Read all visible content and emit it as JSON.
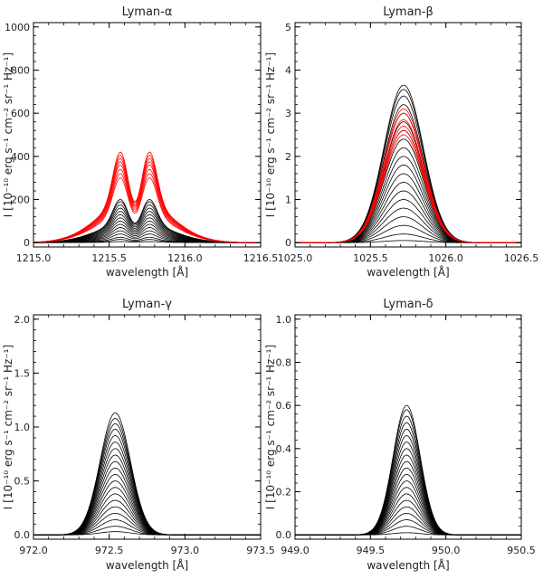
{
  "chart_data": [
    {
      "type": "line",
      "title": "Lyman-α",
      "xlabel": "wavelength [Å]",
      "ylabel": "I [10⁻¹⁰ erg s⁻¹ cm⁻² sr⁻¹ Hz⁻¹]",
      "xlim": [
        1215.0,
        1216.5
      ],
      "ylim": [
        -20,
        1020
      ],
      "xticks": [
        1215.0,
        1215.5,
        1216.0,
        1216.5
      ],
      "xtick_labels": [
        "1215.0",
        "1215.5",
        "1216.0",
        "1216.5"
      ],
      "yticks": [
        0,
        200,
        400,
        600,
        800,
        1000
      ],
      "ytick_labels": [
        "0",
        "200",
        "400",
        "600",
        "800",
        "1000"
      ],
      "profile": {
        "shape": "double",
        "center": 1215.67,
        "sigma": 0.22,
        "sep": 0.1,
        "peak_sigma": 0.05,
        "core_depth": 0.2
      },
      "series": [
        {
          "name": "black profiles",
          "color": "#000000",
          "peaks": [
            5,
            15,
            25,
            40,
            55,
            70,
            85,
            100,
            115,
            130,
            145,
            160,
            175,
            190,
            200
          ]
        },
        {
          "name": "red profiles",
          "color": "#ff0000",
          "peaks": [
            300,
            320,
            340,
            360,
            375,
            390,
            405,
            420
          ]
        }
      ]
    },
    {
      "type": "line",
      "title": "Lyman-β",
      "xlabel": "wavelength [Å]",
      "ylabel": "I [10⁻¹⁰ erg s⁻¹ cm⁻² sr⁻¹ Hz⁻¹]",
      "xlim": [
        1025.0,
        1026.5
      ],
      "ylim": [
        -0.1,
        5.1
      ],
      "xticks": [
        1025.0,
        1025.5,
        1026.0,
        1026.5
      ],
      "xtick_labels": [
        "1025.0",
        "1025.5",
        "1026.0",
        "1026.5"
      ],
      "yticks": [
        0,
        1,
        2,
        3,
        4,
        5
      ],
      "ytick_labels": [
        "0",
        "1",
        "2",
        "3",
        "4",
        "5"
      ],
      "profile": {
        "shape": "single",
        "center": 1025.72,
        "sigma": 0.13
      },
      "series": [
        {
          "name": "black profiles",
          "color": "#000000",
          "peaks": [
            0.05,
            0.2,
            0.4,
            0.6,
            0.8,
            1.0,
            1.2,
            1.4,
            1.6,
            1.8,
            2.0,
            2.2,
            2.4,
            2.6,
            2.8,
            3.0,
            3.2,
            3.4,
            3.55,
            3.65
          ]
        },
        {
          "name": "red profiles",
          "color": "#ff0000",
          "peaks": [
            2.5,
            2.6,
            2.7,
            2.85,
            3.0,
            3.1
          ]
        }
      ]
    },
    {
      "type": "line",
      "title": "Lyman-γ",
      "xlabel": "wavelength [Å]",
      "ylabel": "I [10⁻¹⁰ erg s⁻¹ cm⁻² sr⁻¹ Hz⁻¹]",
      "xlim": [
        972.0,
        973.5
      ],
      "ylim": [
        -0.04,
        2.04
      ],
      "xticks": [
        972.0,
        972.5,
        973.0,
        973.5
      ],
      "xtick_labels": [
        "972.0",
        "972.5",
        "973.0",
        "973.5"
      ],
      "yticks": [
        0,
        0.5,
        1.0,
        1.5,
        2.0
      ],
      "ytick_labels": [
        "0.0",
        "0.5",
        "1.0",
        "1.5",
        "2.0"
      ],
      "profile": {
        "shape": "single",
        "center": 972.54,
        "sigma": 0.1
      },
      "series": [
        {
          "name": "black profiles",
          "color": "#000000",
          "peaks": [
            0.03,
            0.08,
            0.14,
            0.2,
            0.26,
            0.32,
            0.38,
            0.44,
            0.5,
            0.56,
            0.62,
            0.68,
            0.74,
            0.8,
            0.86,
            0.92,
            0.98,
            1.03,
            1.08,
            1.13
          ]
        }
      ]
    },
    {
      "type": "line",
      "title": "Lyman-δ",
      "xlabel": "wavelength [Å]",
      "ylabel": "I [10⁻¹⁰ erg s⁻¹ cm⁻² sr⁻¹ Hz⁻¹]",
      "xlim": [
        949.0,
        950.5
      ],
      "ylim": [
        -0.02,
        1.02
      ],
      "xticks": [
        949.0,
        949.5,
        950.0,
        950.5
      ],
      "xtick_labels": [
        "949.0",
        "949.5",
        "950.0",
        "950.5"
      ],
      "yticks": [
        0,
        0.2,
        0.4,
        0.6,
        0.8,
        1.0
      ],
      "ytick_labels": [
        "0.0",
        "0.2",
        "0.4",
        "0.6",
        "0.8",
        "1.0"
      ],
      "profile": {
        "shape": "single",
        "center": 949.74,
        "sigma": 0.09
      },
      "series": [
        {
          "name": "black profiles",
          "color": "#000000",
          "peaks": [
            0.01,
            0.04,
            0.07,
            0.1,
            0.13,
            0.16,
            0.19,
            0.22,
            0.25,
            0.28,
            0.31,
            0.34,
            0.37,
            0.4,
            0.43,
            0.46,
            0.49,
            0.52,
            0.55,
            0.58,
            0.6
          ]
        }
      ]
    }
  ]
}
